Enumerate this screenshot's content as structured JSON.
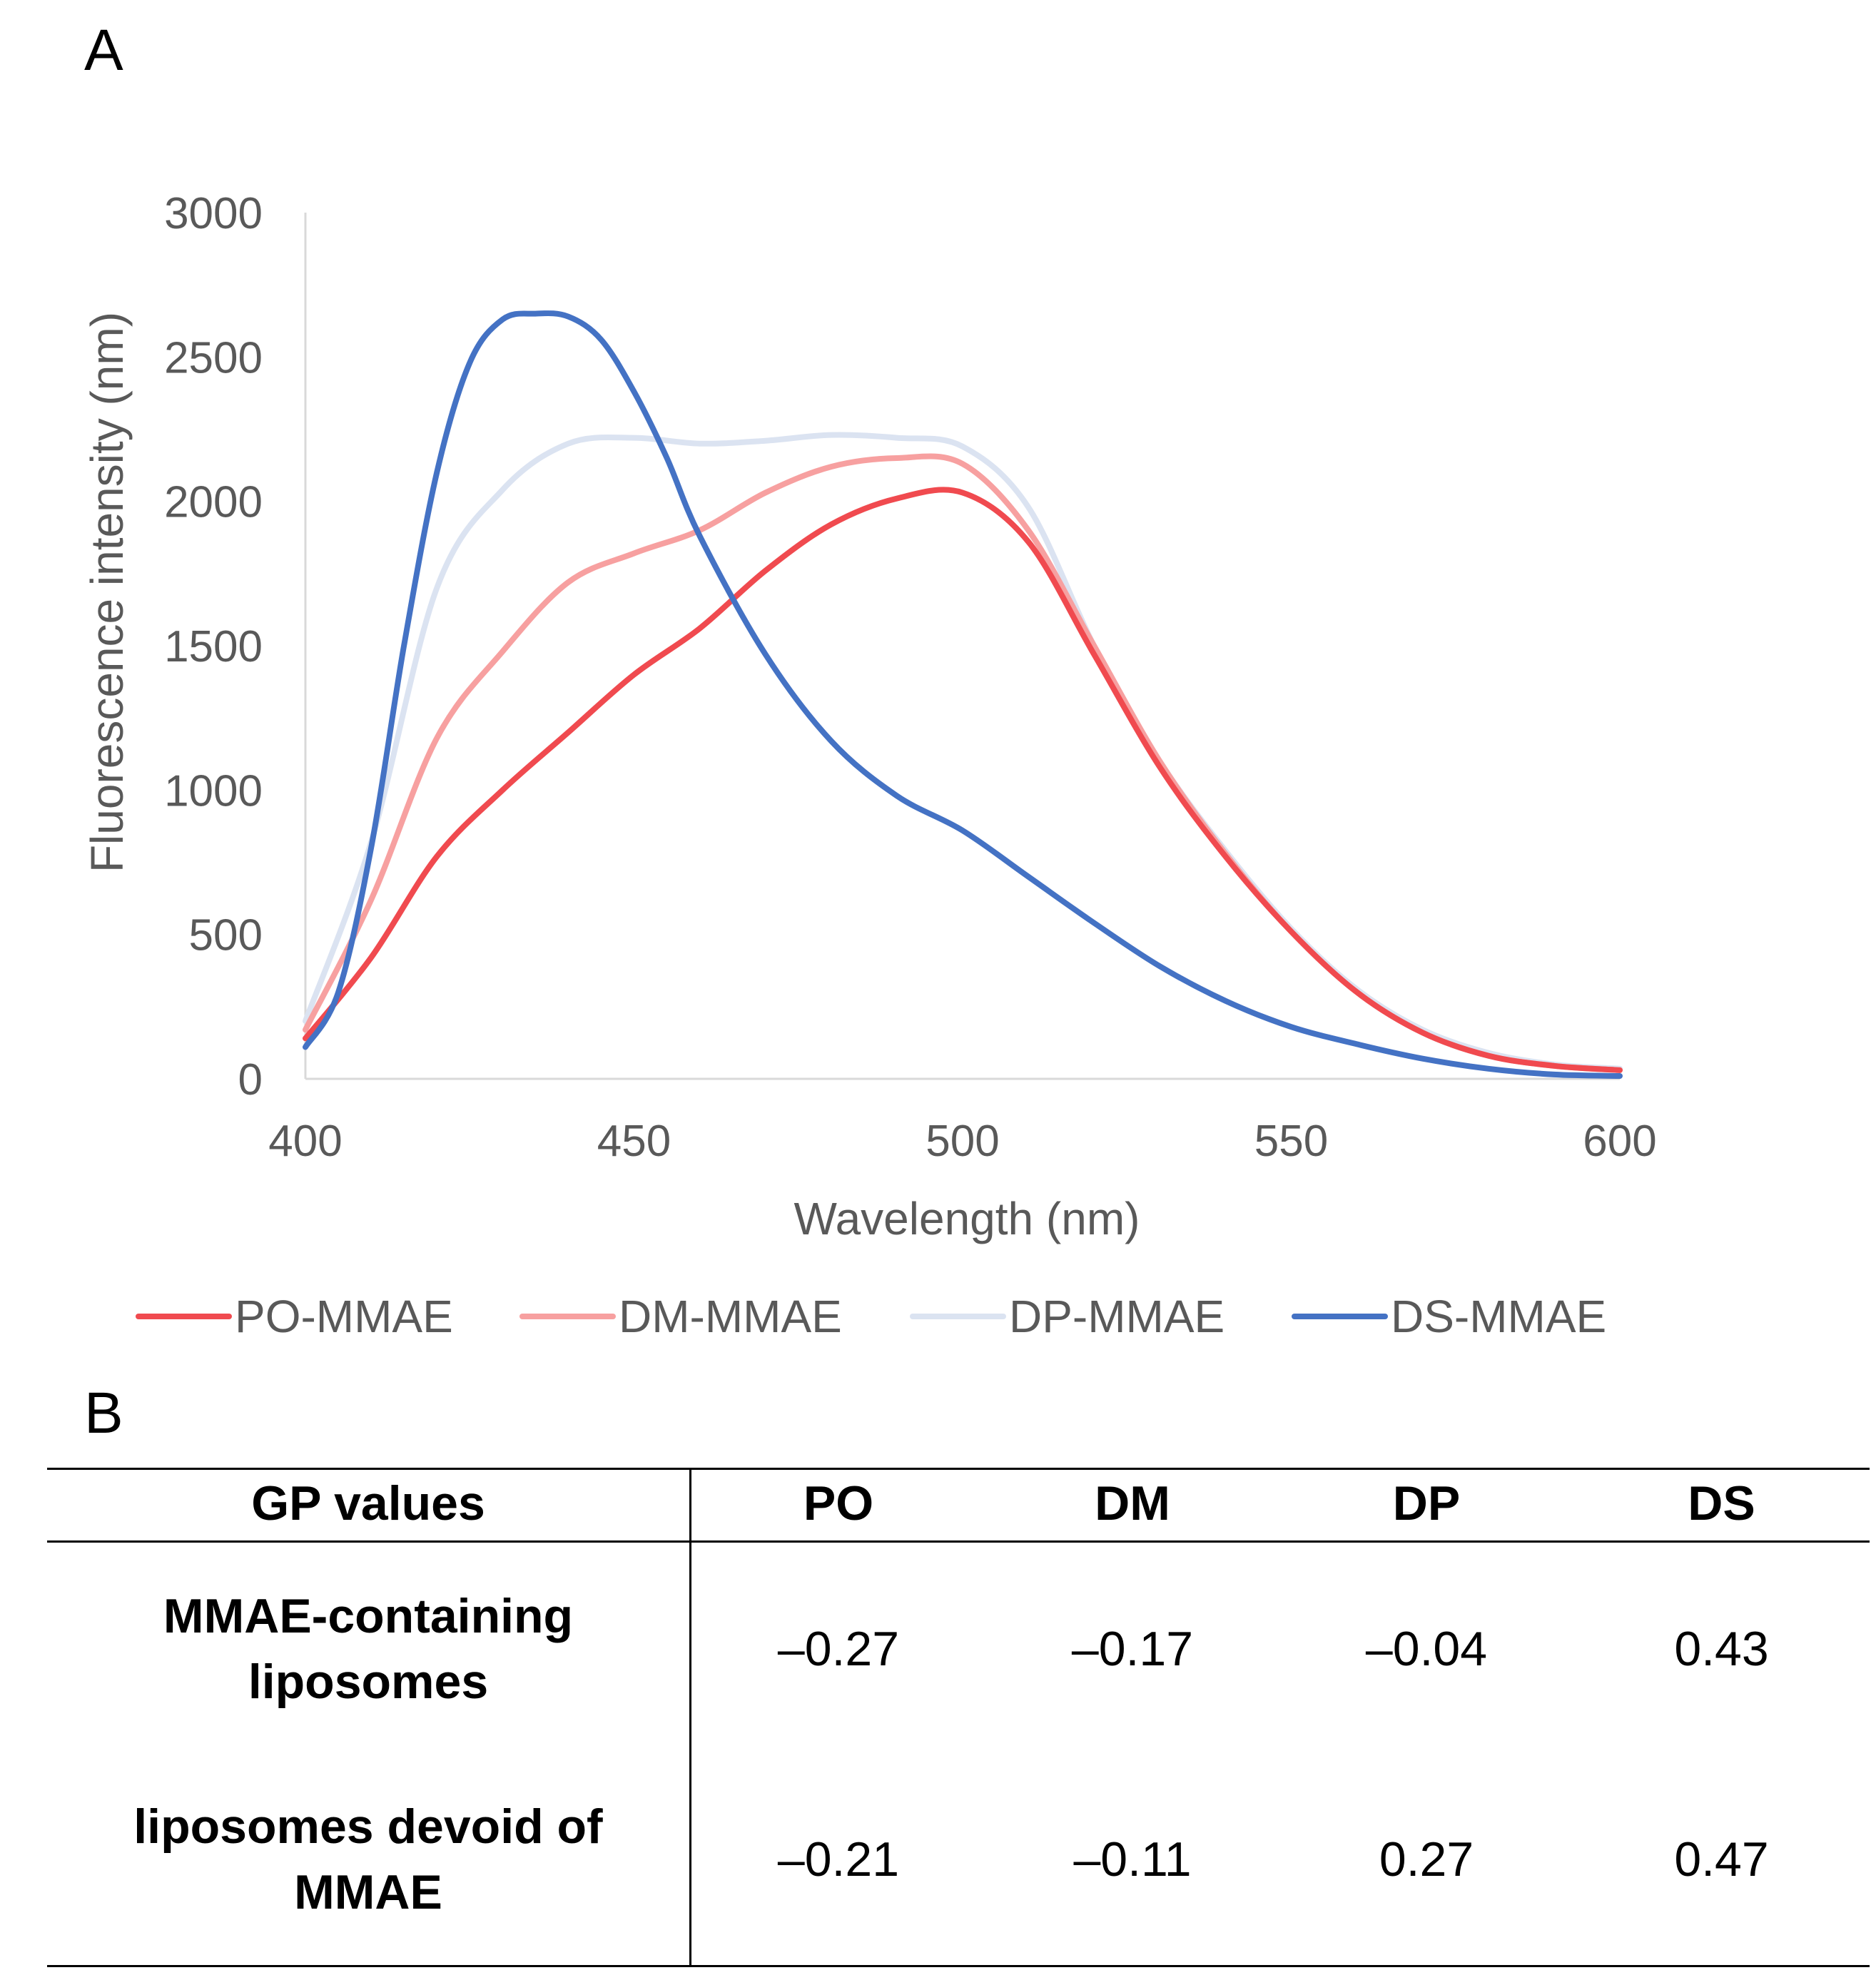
{
  "panel_a": {
    "label": "A"
  },
  "panel_b": {
    "label": "B"
  },
  "chart_data": {
    "type": "line",
    "title": "",
    "xlabel": "Wavelength (nm)",
    "ylabel": "Fluorescence intensity (nm)",
    "xlim": [
      400,
      600
    ],
    "ylim": [
      0,
      3000
    ],
    "x_ticks": [
      400,
      450,
      500,
      550,
      600
    ],
    "y_ticks": [
      0,
      500,
      1000,
      1500,
      2000,
      2500,
      3000
    ],
    "grid": false,
    "legend_position": "bottom",
    "series": [
      {
        "name": "PO-MMAE",
        "color": "#f04a4f",
        "x": [
          400,
          410,
          420,
          430,
          440,
          450,
          460,
          470,
          480,
          490,
          500,
          510,
          520,
          530,
          540,
          550,
          560,
          570,
          580,
          590,
          600
        ],
        "y": [
          140,
          420,
          770,
          1000,
          1200,
          1400,
          1560,
          1760,
          1920,
          2010,
          2030,
          1860,
          1470,
          1080,
          770,
          510,
          300,
          160,
          80,
          45,
          30
        ]
      },
      {
        "name": "DM-MMAE",
        "color": "#f7a0a0",
        "x": [
          400,
          410,
          420,
          430,
          440,
          450,
          460,
          470,
          480,
          490,
          500,
          510,
          520,
          530,
          540,
          550,
          560,
          570,
          580,
          590,
          600
        ],
        "y": [
          170,
          620,
          1180,
          1480,
          1720,
          1820,
          1900,
          2030,
          2120,
          2150,
          2130,
          1900,
          1500,
          1100,
          780,
          510,
          300,
          160,
          80,
          45,
          30
        ]
      },
      {
        "name": "DP-MMAE",
        "color": "#dbe3f1",
        "x": [
          400,
          410,
          420,
          430,
          440,
          450,
          460,
          470,
          480,
          490,
          500,
          510,
          520,
          530,
          540,
          550,
          560,
          570,
          580,
          590,
          600
        ],
        "y": [
          200,
          820,
          1700,
          2040,
          2200,
          2220,
          2200,
          2210,
          2230,
          2220,
          2190,
          1980,
          1500,
          1100,
          790,
          520,
          310,
          170,
          90,
          50,
          35
        ]
      },
      {
        "name": "DS-MMAE",
        "color": "#4472c4",
        "x": [
          400,
          405,
          410,
          415,
          420,
          425,
          430,
          435,
          440,
          445,
          450,
          455,
          460,
          470,
          480,
          490,
          500,
          510,
          520,
          530,
          540,
          550,
          560,
          570,
          580,
          590,
          600
        ],
        "y": [
          110,
          300,
          800,
          1500,
          2100,
          2480,
          2630,
          2650,
          2640,
          2560,
          2380,
          2150,
          1880,
          1470,
          1170,
          980,
          860,
          700,
          540,
          390,
          270,
          180,
          120,
          70,
          35,
          15,
          10
        ]
      }
    ]
  },
  "table": {
    "header": [
      "GP values",
      "PO",
      "DM",
      "DP",
      "DS"
    ],
    "rows": [
      {
        "label": "MMAE-containing liposomes",
        "values": [
          "–0.27",
          "–0.17",
          "–0.04",
          "0.43"
        ]
      },
      {
        "label": "liposomes devoid of MMAE",
        "values": [
          "–0.21",
          "–0.11",
          "0.27",
          "0.47"
        ]
      }
    ]
  }
}
